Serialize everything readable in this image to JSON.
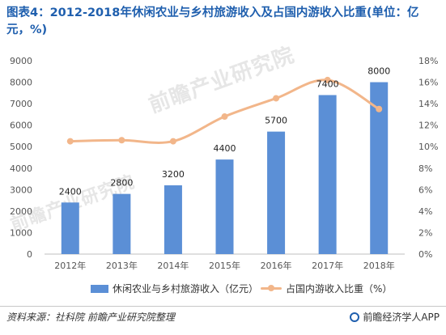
{
  "title": "图表4：2012-2018年休闲农业与乡村旅游收入及占国内游收入比重(单位：亿元，%)",
  "watermarks": [
    "前瞻产业研究院",
    "前瞻产业研究院"
  ],
  "source": "资料来源：社科院 前瞻产业研究院整理",
  "brand": "前瞻经济学人APP",
  "colors": {
    "bar": "#5b8fd6",
    "line": "#f2b68a",
    "title": "#1f5fae"
  },
  "chart_data": {
    "type": "bar",
    "categories": [
      "2012年",
      "2013年",
      "2014年",
      "2015年",
      "2016年",
      "2017年",
      "2018年"
    ],
    "series": [
      {
        "name": "休闲农业与乡村旅游收入（亿元）",
        "type": "bar",
        "axis": "left",
        "values": [
          2400,
          2800,
          3200,
          4400,
          5700,
          7400,
          8000
        ]
      },
      {
        "name": "占国内游收入比重（%）",
        "type": "line",
        "axis": "right",
        "values": [
          10.5,
          10.6,
          10.5,
          12.8,
          14.5,
          16.2,
          13.5
        ]
      }
    ],
    "y_left": {
      "min": 0,
      "max": 9000,
      "step": 1000,
      "tick_labels": [
        "0",
        "1000",
        "2000",
        "3000",
        "4000",
        "5000",
        "6000",
        "7000",
        "8000",
        "9000"
      ]
    },
    "y_right": {
      "min": 0,
      "max": 18,
      "step": 2,
      "tick_labels": [
        "0%",
        "2%",
        "4%",
        "6%",
        "8%",
        "10%",
        "12%",
        "14%",
        "16%",
        "18%"
      ]
    },
    "data_labels": [
      "2400",
      "2800",
      "3200",
      "4400",
      "5700",
      "7400",
      "8000"
    ],
    "legend_position": "bottom",
    "grid": false
  }
}
